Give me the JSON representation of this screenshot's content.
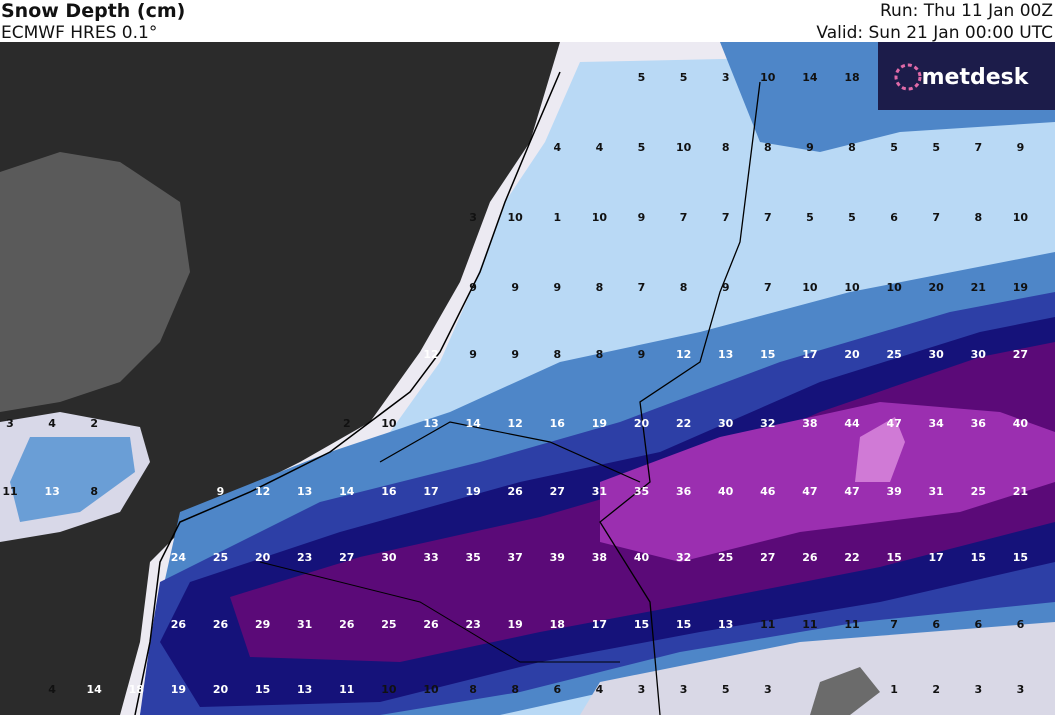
{
  "header": {
    "title": "Snow Depth (cm)",
    "model": "ECMWF HRES 0.1°",
    "run": "Run: Thu 11 Jan 00Z",
    "valid": "Valid: Sun 21 Jan 00:00 UTC"
  },
  "logo": "metdesk",
  "grid_labels": [
    [
      null,
      null,
      null,
      null,
      null,
      null,
      null,
      null,
      null,
      null,
      null,
      null,
      null,
      null,
      null,
      5,
      5,
      3,
      10,
      14,
      18,
      null,
      null,
      null,
      null
    ],
    [
      null,
      null,
      null,
      null,
      null,
      null,
      null,
      null,
      null,
      null,
      null,
      null,
      null,
      4,
      4,
      5,
      10,
      8,
      8,
      9,
      8,
      5,
      5,
      7,
      9
    ],
    [
      null,
      null,
      null,
      null,
      null,
      null,
      null,
      null,
      null,
      null,
      null,
      3,
      10,
      1,
      10,
      9,
      7,
      7,
      7,
      5,
      5,
      6,
      7,
      8,
      10
    ],
    [
      null,
      null,
      null,
      null,
      null,
      null,
      null,
      null,
      null,
      null,
      null,
      9,
      9,
      9,
      8,
      7,
      8,
      9,
      7,
      10,
      10,
      10,
      20,
      21,
      19
    ],
    [
      null,
      null,
      null,
      null,
      null,
      null,
      null,
      null,
      null,
      null,
      12,
      9,
      9,
      8,
      8,
      9,
      12,
      13,
      15,
      17,
      20,
      25,
      30,
      30,
      27
    ],
    [
      3,
      4,
      2,
      null,
      null,
      null,
      null,
      null,
      2,
      10,
      13,
      14,
      12,
      16,
      19,
      20,
      22,
      30,
      32,
      38,
      44,
      47,
      34,
      36,
      40
    ],
    [
      11,
      13,
      8,
      null,
      null,
      9,
      12,
      13,
      14,
      16,
      17,
      19,
      26,
      27,
      31,
      35,
      36,
      40,
      46,
      47,
      47,
      39,
      31,
      25,
      21
    ],
    [
      null,
      null,
      null,
      null,
      24,
      25,
      20,
      23,
      27,
      30,
      33,
      35,
      37,
      39,
      38,
      40,
      32,
      25,
      27,
      26,
      22,
      15,
      17,
      15,
      15
    ],
    [
      null,
      null,
      null,
      null,
      26,
      26,
      29,
      31,
      26,
      25,
      26,
      23,
      19,
      18,
      17,
      15,
      15,
      13,
      11,
      11,
      11,
      7,
      6,
      6,
      6
    ],
    [
      null,
      4,
      14,
      18,
      19,
      20,
      15,
      13,
      11,
      10,
      10,
      8,
      8,
      6,
      4,
      3,
      3,
      5,
      3,
      null,
      null,
      1,
      2,
      3,
      3
    ]
  ]
}
